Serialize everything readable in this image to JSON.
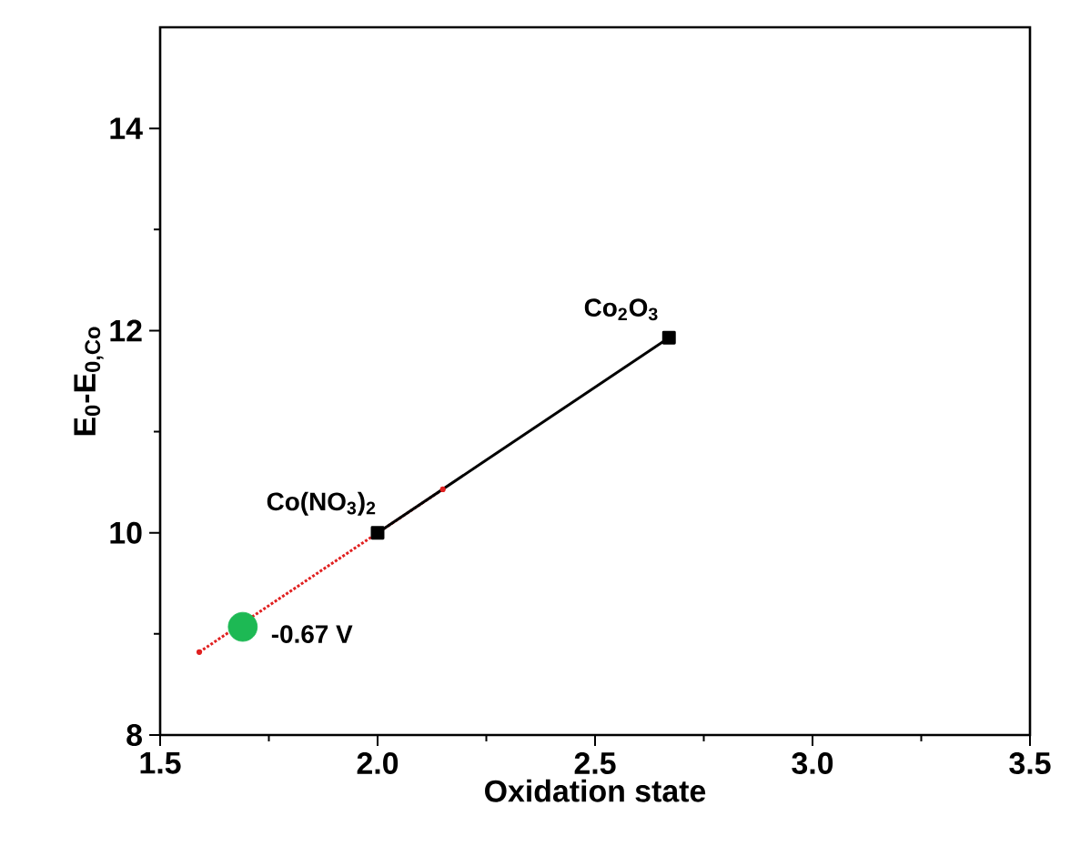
{
  "chart_data": {
    "type": "line",
    "xlabel": "Oxidation state",
    "ylabel": "E$_{0}$-E$_{0,Co}$",
    "xlim": [
      1.5,
      3.5
    ],
    "ylim": [
      8,
      15
    ],
    "xticks": [
      1.5,
      {
        "value": 2,
        "label": "2.0"
      },
      2.5,
      {
        "value": 3,
        "label": "3.0"
      },
      3.5
    ],
    "yticks": [
      8,
      10,
      12,
      14
    ],
    "grid": false,
    "series": [
      {
        "color": "#e02020",
        "line_style": "dotted",
        "marker": "none",
        "x": [
          1.59,
          2.15
        ],
        "values": [
          8.82,
          10.43
        ]
      },
      {
        "color": "#000000",
        "line_style": "solid",
        "marker": "square",
        "x": [
          2.0,
          2.67
        ],
        "values": [
          10.0,
          11.93
        ]
      },
      {
        "type": "scatter",
        "color": "#1db954",
        "marker": "circle",
        "x": [
          1.69
        ],
        "values": [
          9.07
        ]
      }
    ],
    "annotations": [
      {
        "text": "Co$_{2}$O$_{3}$",
        "x": 2.67,
        "y": 11.93
      },
      {
        "text": "Co(NO$_{3}$)$_{2}$",
        "x": 2.0,
        "y": 10.0
      },
      {
        "text": "-0.67 V",
        "x": 1.69,
        "y": 9.07
      }
    ]
  }
}
